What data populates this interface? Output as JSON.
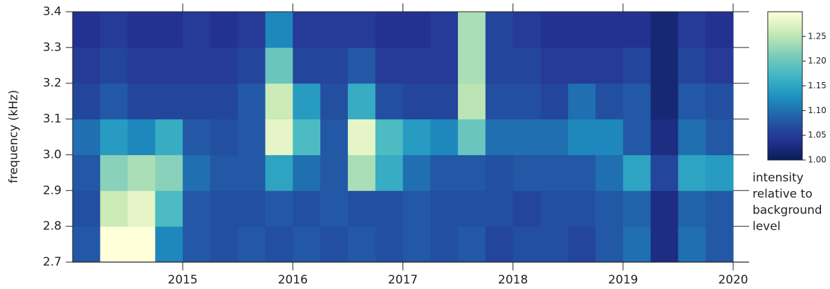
{
  "chart_data": {
    "type": "heatmap",
    "ylabel": "frequency (kHz)",
    "xlim": [
      2014,
      2020
    ],
    "xticks": [
      2015,
      2016,
      2017,
      2018,
      2019,
      2020
    ],
    "ylim": [
      2.7,
      3.4
    ],
    "yticks": [
      2.7,
      2.8,
      2.9,
      {
        "value": 3,
        "label": "3.0"
      },
      3.1,
      3.2,
      3.3,
      3.4
    ],
    "xbins": [
      2014,
      2014.25,
      2014.5,
      2014.75,
      2015,
      2015.25,
      2015.5,
      2015.75,
      2016,
      2016.25,
      2016.5,
      2016.75,
      2017,
      2017.25,
      2017.5,
      2017.75,
      2018,
      2018.25,
      2018.5,
      2018.75,
      2019,
      2019.25,
      2019.5,
      2019.75,
      2020
    ],
    "ybins": [
      2.7,
      2.8,
      2.9,
      3.0,
      3.1,
      3.2,
      3.3,
      3.4
    ],
    "z": [
      [
        1.08,
        1.3,
        1.3,
        1.12,
        1.08,
        1.07,
        1.08,
        1.07,
        1.08,
        1.07,
        1.08,
        1.07,
        1.08,
        1.07,
        1.08,
        1.06,
        1.07,
        1.07,
        1.06,
        1.08,
        1.1,
        1.03,
        1.1,
        1.08
      ],
      [
        1.07,
        1.26,
        1.28,
        1.18,
        1.08,
        1.07,
        1.07,
        1.08,
        1.07,
        1.08,
        1.07,
        1.07,
        1.08,
        1.07,
        1.07,
        1.07,
        1.06,
        1.07,
        1.07,
        1.08,
        1.09,
        1.03,
        1.09,
        1.08
      ],
      [
        1.08,
        1.22,
        1.24,
        1.22,
        1.1,
        1.08,
        1.08,
        1.15,
        1.1,
        1.08,
        1.24,
        1.16,
        1.1,
        1.08,
        1.08,
        1.07,
        1.08,
        1.08,
        1.08,
        1.1,
        1.15,
        1.06,
        1.15,
        1.14
      ],
      [
        1.1,
        1.14,
        1.12,
        1.16,
        1.08,
        1.07,
        1.08,
        1.28,
        1.18,
        1.08,
        1.28,
        1.18,
        1.14,
        1.12,
        1.2,
        1.1,
        1.1,
        1.1,
        1.12,
        1.12,
        1.08,
        1.03,
        1.1,
        1.08
      ],
      [
        1.06,
        1.08,
        1.06,
        1.06,
        1.06,
        1.06,
        1.08,
        1.26,
        1.14,
        1.07,
        1.16,
        1.07,
        1.06,
        1.06,
        1.25,
        1.07,
        1.07,
        1.06,
        1.1,
        1.07,
        1.08,
        1.02,
        1.08,
        1.07
      ],
      [
        1.05,
        1.06,
        1.05,
        1.05,
        1.05,
        1.05,
        1.06,
        1.2,
        1.06,
        1.06,
        1.08,
        1.05,
        1.05,
        1.05,
        1.24,
        1.06,
        1.06,
        1.05,
        1.05,
        1.05,
        1.06,
        1.02,
        1.06,
        1.05
      ],
      [
        1.04,
        1.05,
        1.04,
        1.04,
        1.05,
        1.04,
        1.05,
        1.12,
        1.05,
        1.05,
        1.05,
        1.04,
        1.04,
        1.05,
        1.24,
        1.06,
        1.05,
        1.04,
        1.04,
        1.04,
        1.04,
        1.02,
        1.05,
        1.04
      ]
    ],
    "colormap": "YlGnBu",
    "clim": [
      1,
      1.3
    ],
    "cticks": [
      {
        "value": 1,
        "label": "1.00"
      },
      {
        "value": 1.05,
        "label": "1.05"
      },
      {
        "value": 1.1,
        "label": "1.10"
      },
      {
        "value": 1.15,
        "label": "1.15"
      },
      {
        "value": 1.2,
        "label": "1.20"
      },
      {
        "value": 1.25,
        "label": "1.25"
      }
    ],
    "colorbar_label": [
      "intensity",
      "relative to",
      "background",
      "level"
    ]
  }
}
